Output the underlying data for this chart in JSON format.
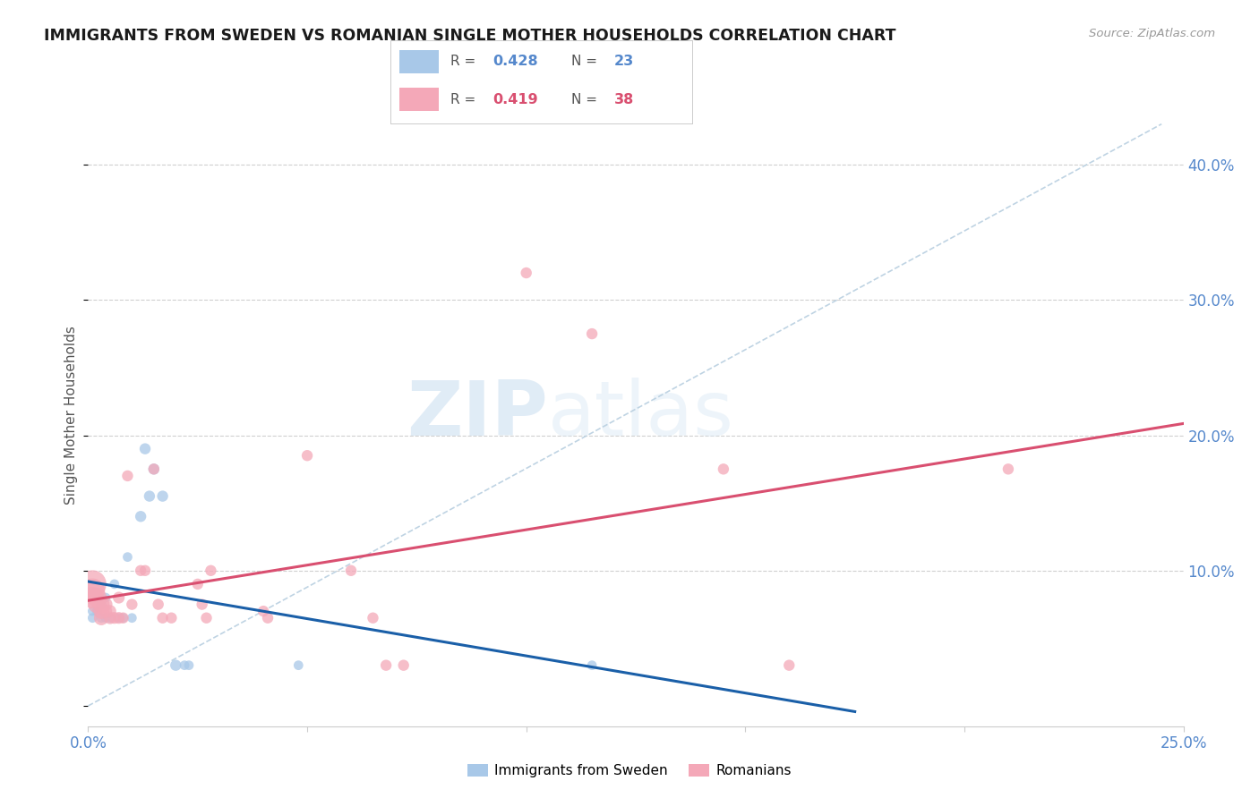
{
  "title": "IMMIGRANTS FROM SWEDEN VS ROMANIAN SINGLE MOTHER HOUSEHOLDS CORRELATION CHART",
  "source": "Source: ZipAtlas.com",
  "ylabel": "Single Mother Households",
  "ytick_vals": [
    0.0,
    0.1,
    0.2,
    0.3,
    0.4
  ],
  "xlim": [
    0,
    0.25
  ],
  "ylim": [
    -0.015,
    0.445
  ],
  "sweden_color": "#a8c8e8",
  "romanian_color": "#f4a8b8",
  "sweden_line_color": "#1a5fa8",
  "romanian_line_color": "#d94f70",
  "diagonal_color": "#b8cfe0",
  "watermark_zip": "ZIP",
  "watermark_atlas": "atlas",
  "sweden_points": [
    [
      0.001,
      0.065
    ],
    [
      0.001,
      0.07
    ],
    [
      0.002,
      0.07
    ],
    [
      0.003,
      0.075
    ],
    [
      0.003,
      0.065
    ],
    [
      0.004,
      0.08
    ],
    [
      0.004,
      0.065
    ],
    [
      0.005,
      0.065
    ],
    [
      0.006,
      0.09
    ],
    [
      0.007,
      0.065
    ],
    [
      0.008,
      0.065
    ],
    [
      0.009,
      0.11
    ],
    [
      0.01,
      0.065
    ],
    [
      0.012,
      0.14
    ],
    [
      0.013,
      0.19
    ],
    [
      0.014,
      0.155
    ],
    [
      0.015,
      0.175
    ],
    [
      0.017,
      0.155
    ],
    [
      0.02,
      0.03
    ],
    [
      0.022,
      0.03
    ],
    [
      0.023,
      0.03
    ],
    [
      0.048,
      0.03
    ],
    [
      0.115,
      0.03
    ]
  ],
  "romanian_points": [
    [
      0.001,
      0.09
    ],
    [
      0.001,
      0.085
    ],
    [
      0.001,
      0.08
    ],
    [
      0.002,
      0.08
    ],
    [
      0.002,
      0.075
    ],
    [
      0.003,
      0.075
    ],
    [
      0.003,
      0.07
    ],
    [
      0.003,
      0.065
    ],
    [
      0.004,
      0.075
    ],
    [
      0.004,
      0.07
    ],
    [
      0.005,
      0.07
    ],
    [
      0.005,
      0.065
    ],
    [
      0.006,
      0.065
    ],
    [
      0.007,
      0.08
    ],
    [
      0.007,
      0.065
    ],
    [
      0.008,
      0.065
    ],
    [
      0.009,
      0.17
    ],
    [
      0.01,
      0.075
    ],
    [
      0.012,
      0.1
    ],
    [
      0.013,
      0.1
    ],
    [
      0.015,
      0.175
    ],
    [
      0.016,
      0.075
    ],
    [
      0.017,
      0.065
    ],
    [
      0.019,
      0.065
    ],
    [
      0.025,
      0.09
    ],
    [
      0.026,
      0.075
    ],
    [
      0.027,
      0.065
    ],
    [
      0.028,
      0.1
    ],
    [
      0.04,
      0.07
    ],
    [
      0.041,
      0.065
    ],
    [
      0.05,
      0.185
    ],
    [
      0.06,
      0.1
    ],
    [
      0.065,
      0.065
    ],
    [
      0.068,
      0.03
    ],
    [
      0.072,
      0.03
    ],
    [
      0.1,
      0.32
    ],
    [
      0.115,
      0.275
    ],
    [
      0.145,
      0.175
    ],
    [
      0.16,
      0.03
    ],
    [
      0.21,
      0.175
    ]
  ],
  "sweden_point_sizes": [
    60,
    60,
    60,
    60,
    60,
    60,
    60,
    60,
    60,
    60,
    60,
    60,
    60,
    80,
    80,
    80,
    80,
    80,
    80,
    60,
    60,
    60,
    60
  ],
  "romanian_point_sizes": [
    500,
    400,
    300,
    250,
    200,
    180,
    160,
    140,
    120,
    110,
    100,
    100,
    90,
    90,
    90,
    80,
    80,
    80,
    80,
    80,
    80,
    80,
    80,
    80,
    80,
    80,
    80,
    80,
    80,
    80,
    80,
    80,
    80,
    80,
    80,
    80,
    80,
    80,
    80,
    80
  ]
}
